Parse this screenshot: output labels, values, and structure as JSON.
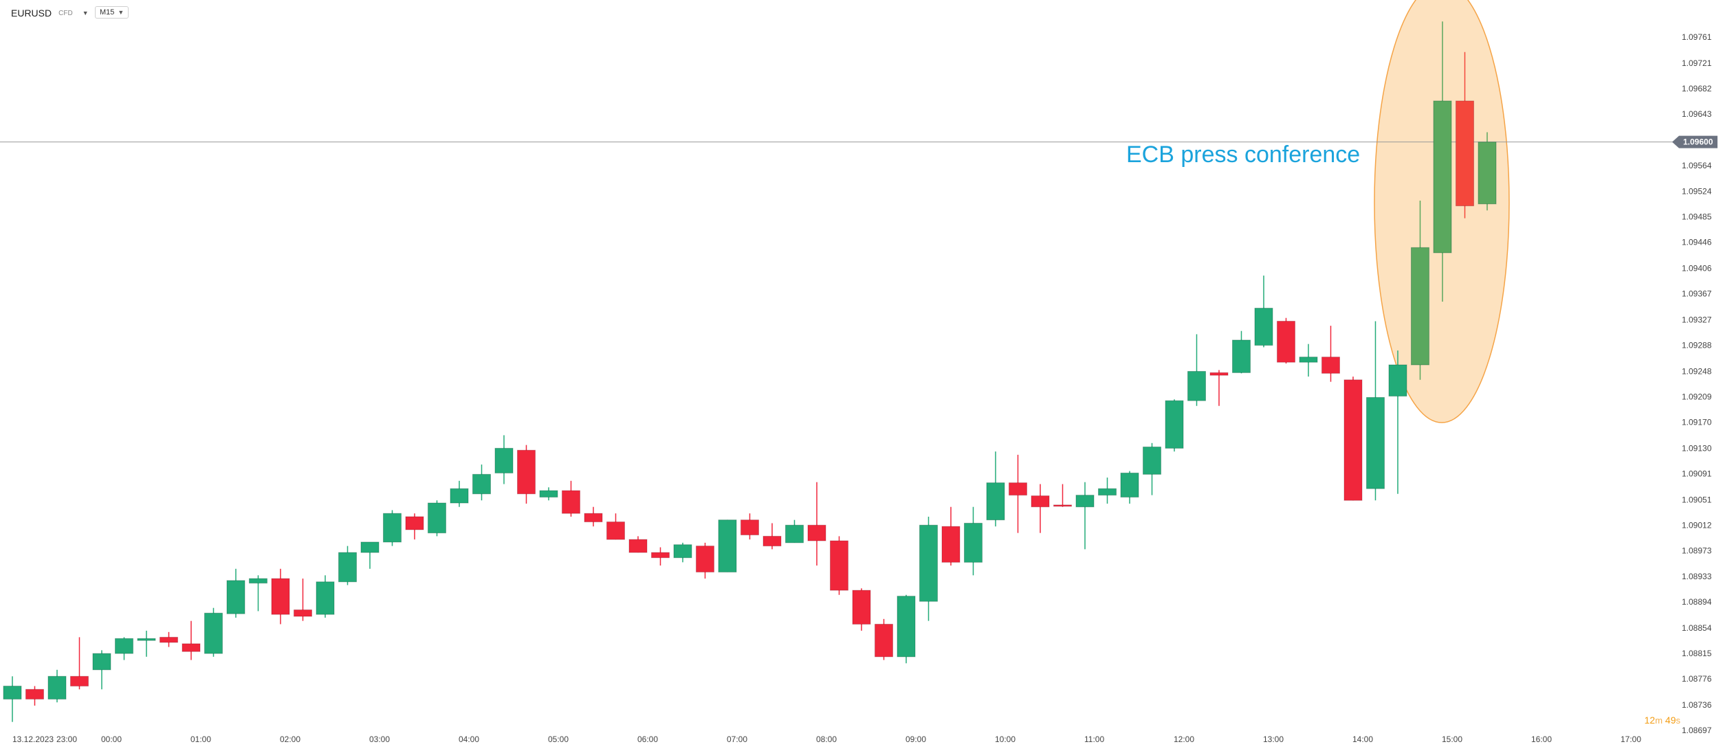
{
  "header": {
    "symbol": "EURUSD",
    "instrument_type": "CFD",
    "timeframe": "M15"
  },
  "countdown": {
    "minutes": "12",
    "minutes_unit": "m",
    "seconds": "49",
    "seconds_unit": "s"
  },
  "annotation": {
    "text": "ECB press conference",
    "color": "#1aa3dc",
    "highlight_fill": "#fde2bf",
    "highlight_stroke": "#f5a447"
  },
  "current_price": {
    "label": "1.09600",
    "value": 1.096
  },
  "colors": {
    "up": "#22ab78",
    "down": "#f0263b",
    "up_highlight": "#5aa85e",
    "down_highlight": "#f4473b",
    "price_line": "#9a9a9a",
    "price_tag": "#6b7280"
  },
  "chart_data": {
    "type": "candlestick",
    "xlabel": "",
    "ylabel": "",
    "ylim": [
      1.08678,
      1.098
    ],
    "y_ticks": [
      "1.09761",
      "1.09721",
      "1.09682",
      "1.09643",
      "1.09564",
      "1.09524",
      "1.09485",
      "1.09446",
      "1.09406",
      "1.09367",
      "1.09327",
      "1.09288",
      "1.09248",
      "1.09209",
      "1.09170",
      "1.09130",
      "1.09091",
      "1.09051",
      "1.09012",
      "1.08973",
      "1.08933",
      "1.08894",
      "1.08854",
      "1.08815",
      "1.08776",
      "1.08736",
      "1.08697"
    ],
    "x_tick_labels": [
      {
        "i": 0,
        "label": "13.12.2023"
      },
      {
        "i": 2.4,
        "label": "23:00"
      },
      {
        "i": 4.4,
        "label": "00:00"
      },
      {
        "i": 8.4,
        "label": "01:00"
      },
      {
        "i": 12.4,
        "label": "02:00"
      },
      {
        "i": 16.4,
        "label": "03:00"
      },
      {
        "i": 20.4,
        "label": "04:00"
      },
      {
        "i": 24.4,
        "label": "05:00"
      },
      {
        "i": 28.4,
        "label": "06:00"
      },
      {
        "i": 32.4,
        "label": "07:00"
      },
      {
        "i": 36.4,
        "label": "08:00"
      },
      {
        "i": 40.4,
        "label": "09:00"
      },
      {
        "i": 44.4,
        "label": "10:00"
      },
      {
        "i": 48.4,
        "label": "11:00"
      },
      {
        "i": 52.4,
        "label": "12:00"
      },
      {
        "i": 56.4,
        "label": "13:00"
      },
      {
        "i": 60.4,
        "label": "14:00"
      },
      {
        "i": 64.4,
        "label": "15:00"
      },
      {
        "i": 68.4,
        "label": "16:00"
      },
      {
        "i": 72.4,
        "label": "17:00"
      }
    ],
    "candles": [
      {
        "o": 1.08745,
        "h": 1.0878,
        "l": 1.0871,
        "c": 1.08765
      },
      {
        "o": 1.0876,
        "h": 1.08765,
        "l": 1.08735,
        "c": 1.08745
      },
      {
        "o": 1.08745,
        "h": 1.0879,
        "l": 1.0874,
        "c": 1.0878
      },
      {
        "o": 1.0878,
        "h": 1.0884,
        "l": 1.0876,
        "c": 1.08765
      },
      {
        "o": 1.0879,
        "h": 1.0882,
        "l": 1.0876,
        "c": 1.08815
      },
      {
        "o": 1.08815,
        "h": 1.0884,
        "l": 1.08805,
        "c": 1.08838
      },
      {
        "o": 1.08835,
        "h": 1.0885,
        "l": 1.0881,
        "c": 1.08838
      },
      {
        "o": 1.0884,
        "h": 1.08848,
        "l": 1.08825,
        "c": 1.08832
      },
      {
        "o": 1.0883,
        "h": 1.08865,
        "l": 1.08805,
        "c": 1.08818
      },
      {
        "o": 1.08815,
        "h": 1.08885,
        "l": 1.0881,
        "c": 1.08877
      },
      {
        "o": 1.08876,
        "h": 1.08945,
        "l": 1.0887,
        "c": 1.08927
      },
      {
        "o": 1.08923,
        "h": 1.08935,
        "l": 1.0888,
        "c": 1.0893
      },
      {
        "o": 1.0893,
        "h": 1.08945,
        "l": 1.0886,
        "c": 1.08875
      },
      {
        "o": 1.08882,
        "h": 1.0893,
        "l": 1.08865,
        "c": 1.08872
      },
      {
        "o": 1.08875,
        "h": 1.08935,
        "l": 1.0887,
        "c": 1.08925
      },
      {
        "o": 1.08925,
        "h": 1.0898,
        "l": 1.0892,
        "c": 1.0897
      },
      {
        "o": 1.0897,
        "h": 1.0898,
        "l": 1.08945,
        "c": 1.08986
      },
      {
        "o": 1.08986,
        "h": 1.09035,
        "l": 1.0898,
        "c": 1.0903
      },
      {
        "o": 1.09025,
        "h": 1.0903,
        "l": 1.0899,
        "c": 1.09005
      },
      {
        "o": 1.09,
        "h": 1.0905,
        "l": 1.08995,
        "c": 1.09046
      },
      {
        "o": 1.09046,
        "h": 1.0908,
        "l": 1.0904,
        "c": 1.09068
      },
      {
        "o": 1.0906,
        "h": 1.09105,
        "l": 1.0905,
        "c": 1.0909
      },
      {
        "o": 1.09092,
        "h": 1.0915,
        "l": 1.09075,
        "c": 1.0913
      },
      {
        "o": 1.09127,
        "h": 1.09135,
        "l": 1.09045,
        "c": 1.0906
      },
      {
        "o": 1.09055,
        "h": 1.0907,
        "l": 1.0905,
        "c": 1.09065
      },
      {
        "o": 1.09065,
        "h": 1.0908,
        "l": 1.09025,
        "c": 1.0903
      },
      {
        "o": 1.0903,
        "h": 1.0904,
        "l": 1.0901,
        "c": 1.09017
      },
      {
        "o": 1.09017,
        "h": 1.0903,
        "l": 1.0899,
        "c": 1.0899
      },
      {
        "o": 1.0899,
        "h": 1.08995,
        "l": 1.0897,
        "c": 1.0897
      },
      {
        "o": 1.0897,
        "h": 1.08978,
        "l": 1.0895,
        "c": 1.08962
      },
      {
        "o": 1.08962,
        "h": 1.08985,
        "l": 1.08955,
        "c": 1.08982
      },
      {
        "o": 1.0898,
        "h": 1.08985,
        "l": 1.0893,
        "c": 1.0894
      },
      {
        "o": 1.0894,
        "h": 1.0902,
        "l": 1.0894,
        "c": 1.0902
      },
      {
        "o": 1.0902,
        "h": 1.0903,
        "l": 1.0899,
        "c": 1.08997
      },
      {
        "o": 1.08995,
        "h": 1.09015,
        "l": 1.08975,
        "c": 1.0898
      },
      {
        "o": 1.08985,
        "h": 1.0902,
        "l": 1.08985,
        "c": 1.09012
      },
      {
        "o": 1.09012,
        "h": 1.09078,
        "l": 1.0895,
        "c": 1.08988
      },
      {
        "o": 1.08988,
        "h": 1.08995,
        "l": 1.08905,
        "c": 1.08912
      },
      {
        "o": 1.08912,
        "h": 1.08915,
        "l": 1.0885,
        "c": 1.0886
      },
      {
        "o": 1.0886,
        "h": 1.08868,
        "l": 1.08805,
        "c": 1.0881
      },
      {
        "o": 1.0881,
        "h": 1.08905,
        "l": 1.088,
        "c": 1.08903
      },
      {
        "o": 1.08895,
        "h": 1.09025,
        "l": 1.08865,
        "c": 1.09012
      },
      {
        "o": 1.0901,
        "h": 1.0904,
        "l": 1.0895,
        "c": 1.08955
      },
      {
        "o": 1.08955,
        "h": 1.0904,
        "l": 1.08935,
        "c": 1.09015
      },
      {
        "o": 1.0902,
        "h": 1.09125,
        "l": 1.0901,
        "c": 1.09077
      },
      {
        "o": 1.09077,
        "h": 1.0912,
        "l": 1.09,
        "c": 1.09058
      },
      {
        "o": 1.09057,
        "h": 1.09075,
        "l": 1.09,
        "c": 1.0904
      },
      {
        "o": 1.09043,
        "h": 1.09075,
        "l": 1.0904,
        "c": 1.09042
      },
      {
        "o": 1.0904,
        "h": 1.09078,
        "l": 1.08975,
        "c": 1.09058
      },
      {
        "o": 1.09058,
        "h": 1.09085,
        "l": 1.09045,
        "c": 1.09068
      },
      {
        "o": 1.09055,
        "h": 1.09095,
        "l": 1.09045,
        "c": 1.09092
      },
      {
        "o": 1.0909,
        "h": 1.09138,
        "l": 1.09058,
        "c": 1.09132
      },
      {
        "o": 1.0913,
        "h": 1.09205,
        "l": 1.09125,
        "c": 1.09203
      },
      {
        "o": 1.09203,
        "h": 1.09305,
        "l": 1.09195,
        "c": 1.09248
      },
      {
        "o": 1.09246,
        "h": 1.0925,
        "l": 1.09195,
        "c": 1.09242
      },
      {
        "o": 1.09246,
        "h": 1.0931,
        "l": 1.09245,
        "c": 1.09296
      },
      {
        "o": 1.09288,
        "h": 1.09395,
        "l": 1.09285,
        "c": 1.09345
      },
      {
        "o": 1.09325,
        "h": 1.0933,
        "l": 1.0926,
        "c": 1.09262
      },
      {
        "o": 1.09262,
        "h": 1.0929,
        "l": 1.0924,
        "c": 1.0927
      },
      {
        "o": 1.0927,
        "h": 1.09318,
        "l": 1.09232,
        "c": 1.09245
      },
      {
        "o": 1.09235,
        "h": 1.0924,
        "l": 1.0905,
        "c": 1.0905
      },
      {
        "o": 1.09068,
        "h": 1.09325,
        "l": 1.0905,
        "c": 1.09208
      },
      {
        "o": 1.0921,
        "h": 1.0928,
        "l": 1.0906,
        "c": 1.09258
      },
      {
        "o": 1.09258,
        "h": 1.0951,
        "l": 1.09235,
        "c": 1.09438
      },
      {
        "o": 1.0943,
        "h": 1.09785,
        "l": 1.09355,
        "c": 1.09663
      },
      {
        "o": 1.09663,
        "h": 1.09738,
        "l": 1.09483,
        "c": 1.09502
      },
      {
        "o": 1.09505,
        "h": 1.09615,
        "l": 1.09495,
        "c": 1.096
      }
    ]
  }
}
